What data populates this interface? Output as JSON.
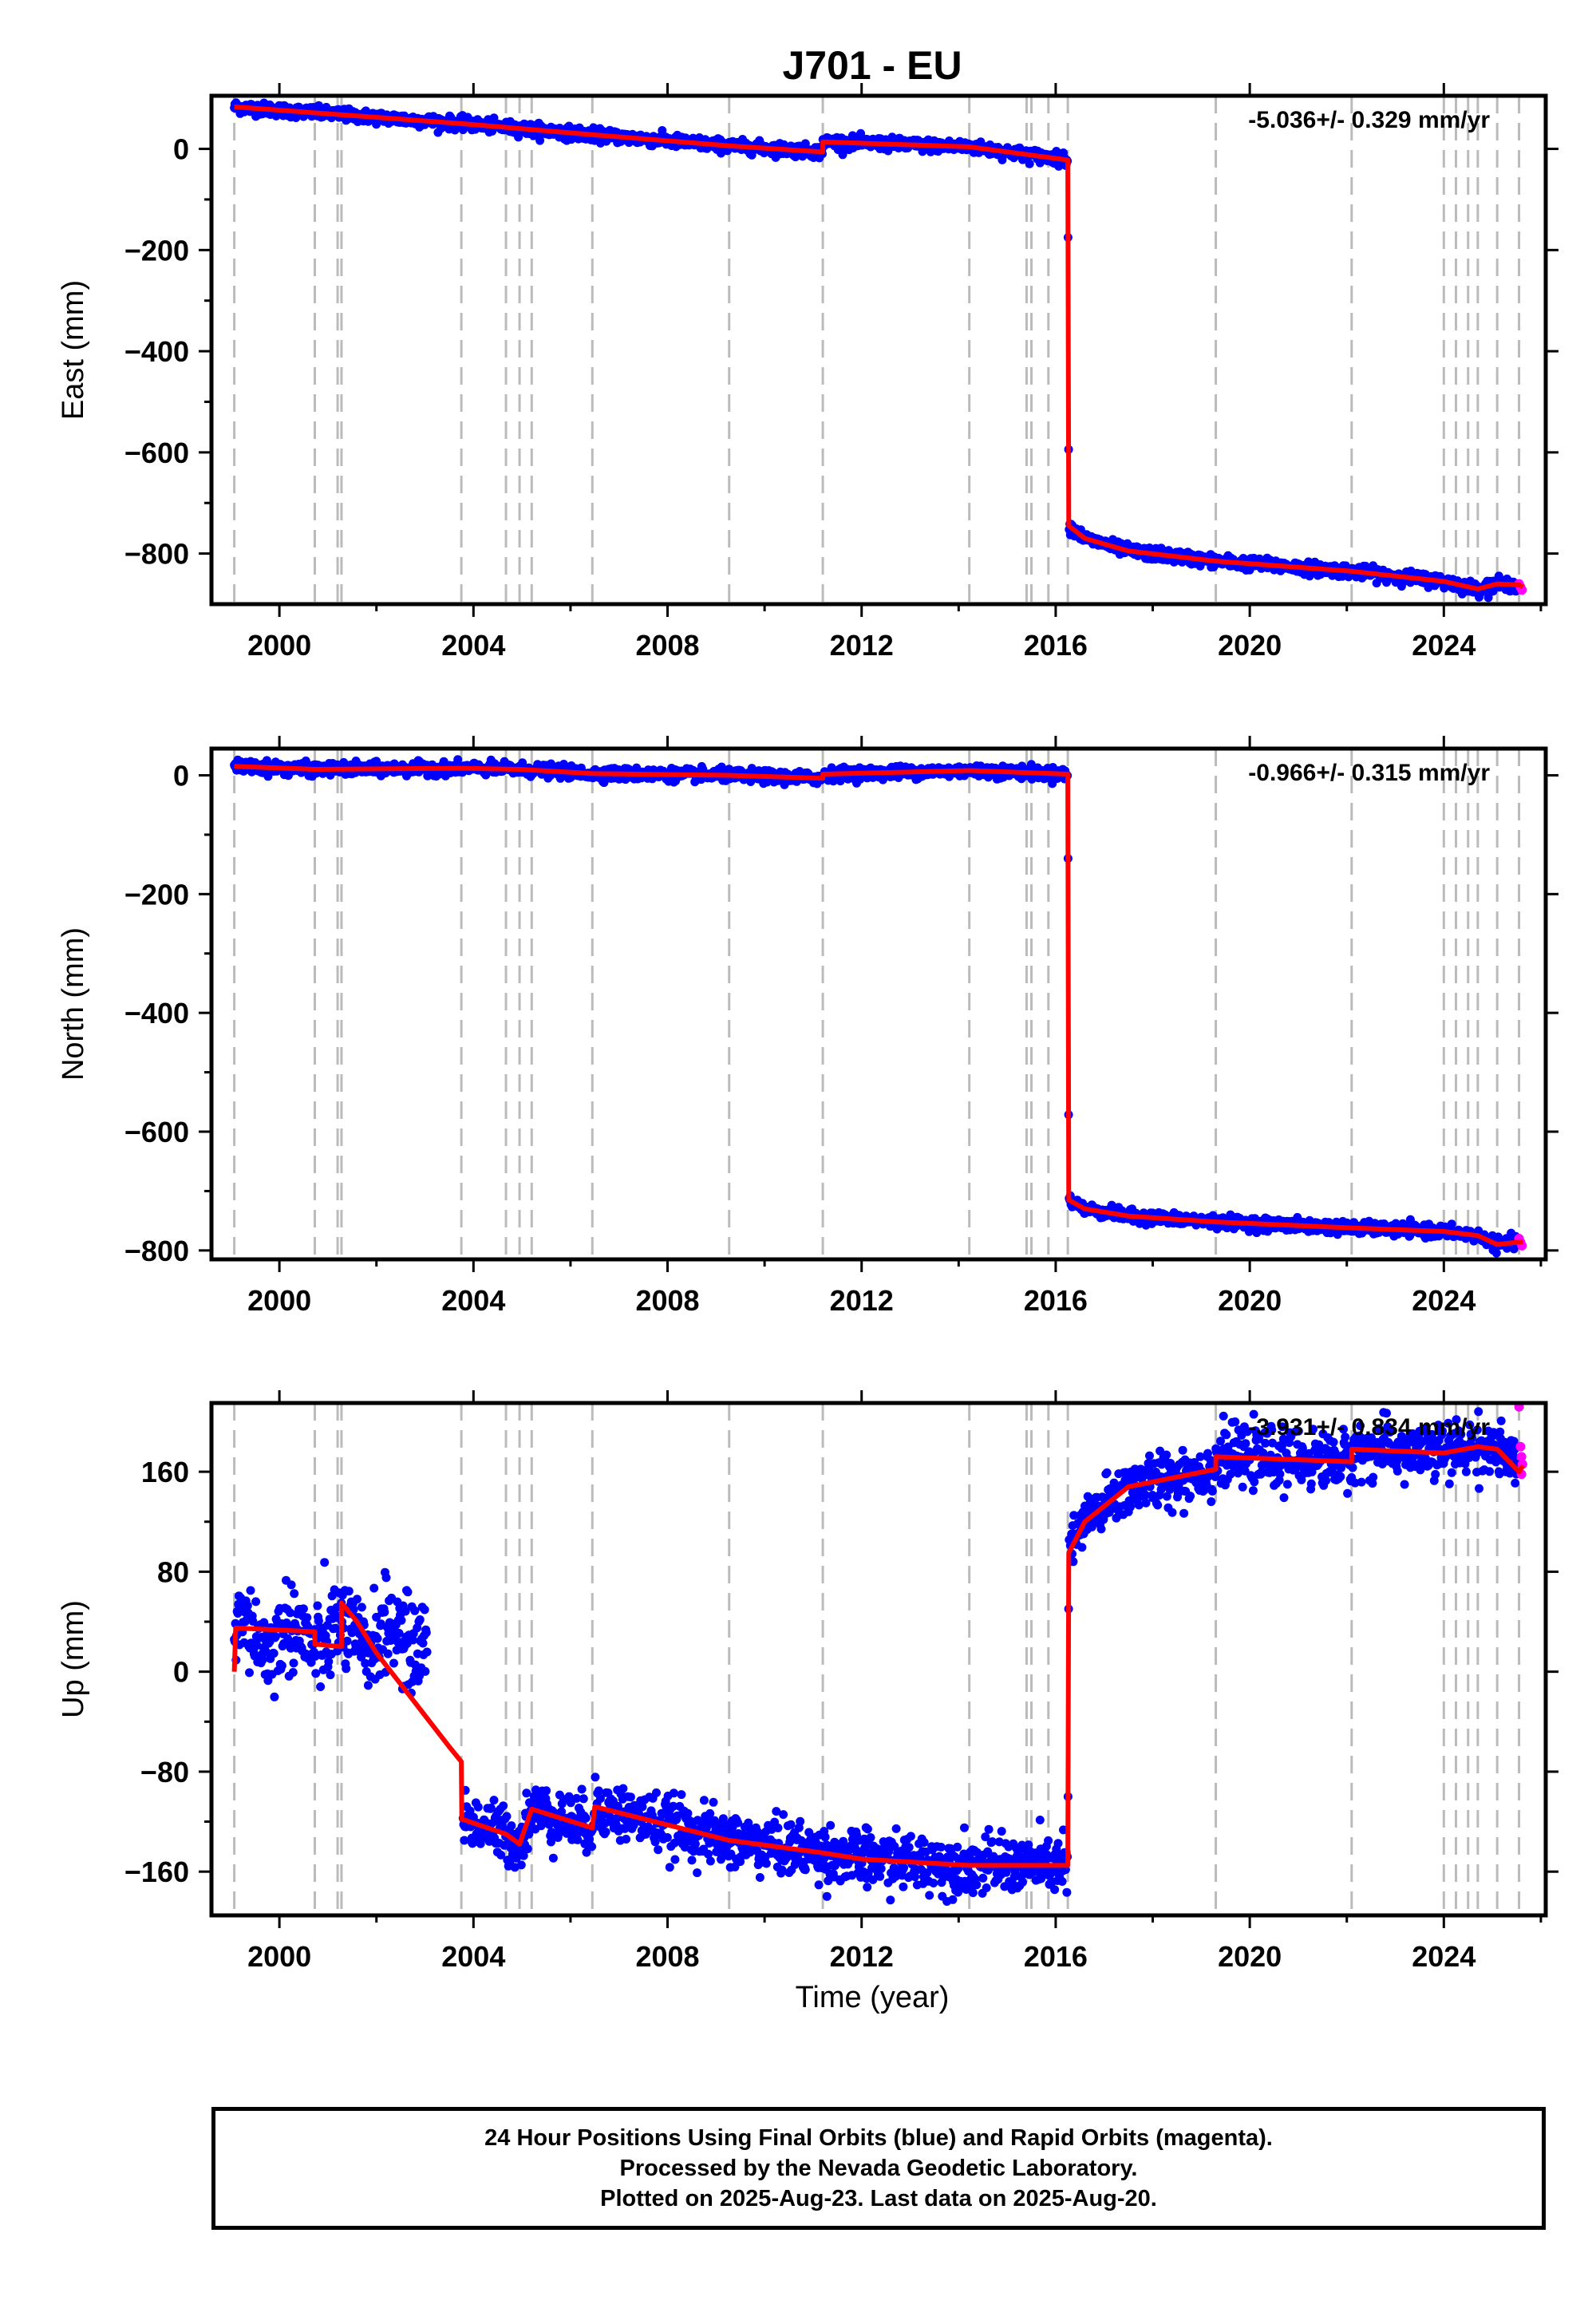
{
  "chart_data": {
    "type": "scatter",
    "title": "J701 - EU",
    "colors": {
      "final": "#0000ff",
      "rapid": "#ff00ff",
      "model": "#ff0000",
      "event": "#bbbbbb"
    },
    "event_years": [
      1999.07,
      2000.73,
      2001.2,
      2001.28,
      2003.75,
      2004.67,
      2004.95,
      2005.2,
      2006.45,
      2009.27,
      2011.2,
      2014.22,
      2015.4,
      2015.5,
      2015.85,
      2016.25,
      2019.3,
      2022.1,
      2024.0,
      2024.25,
      2024.5,
      2024.7,
      2025.1,
      2025.55
    ],
    "panels": [
      {
        "name": "East",
        "ylabel": "East (mm)",
        "rate": "-5.036+/- 0.329 mm/yr",
        "xlim": [
          1998.6,
          2026.1
        ],
        "ylim": [
          -900,
          105
        ],
        "yticks": [
          0,
          -200,
          -400,
          -600,
          -800
        ],
        "ytick_labels": [
          "0",
          "−200",
          "−400",
          "−600",
          "−800"
        ],
        "xticks": [
          2000,
          2004,
          2008,
          2012,
          2016,
          2020,
          2024
        ],
        "xtick_labels": [
          "2000",
          "2004",
          "2008",
          "2012",
          "2016",
          "2020",
          "2024"
        ],
        "noise": 6,
        "model": [
          [
            1999.07,
            83
          ],
          [
            2003.75,
            50
          ],
          [
            2006.45,
            28
          ],
          [
            2009.27,
            6
          ],
          [
            2011.2,
            -6
          ],
          [
            2011.2,
            14
          ],
          [
            2014.22,
            4
          ],
          [
            2016.25,
            -22
          ],
          [
            2016.27,
            -745
          ],
          [
            2016.6,
            -770
          ],
          [
            2017.5,
            -795
          ],
          [
            2019.3,
            -815
          ],
          [
            2022.1,
            -835
          ],
          [
            2024.0,
            -855
          ],
          [
            2024.7,
            -870
          ],
          [
            2025.1,
            -860
          ],
          [
            2025.55,
            -862
          ],
          [
            2025.63,
            -866
          ]
        ],
        "rapid_points": [
          [
            2025.55,
            -860
          ],
          [
            2025.58,
            -866
          ],
          [
            2025.61,
            -872
          ]
        ]
      },
      {
        "name": "North",
        "ylabel": "North (mm)",
        "rate": "-0.966+/- 0.315 mm/yr",
        "xlim": [
          1998.6,
          2026.1
        ],
        "ylim": [
          -815,
          45
        ],
        "yticks": [
          0,
          -200,
          -400,
          -600,
          -800
        ],
        "ytick_labels": [
          "0",
          "−200",
          "−400",
          "−600",
          "−800"
        ],
        "xticks": [
          2000,
          2004,
          2008,
          2012,
          2016,
          2020,
          2024
        ],
        "xtick_labels": [
          "2000",
          "2004",
          "2008",
          "2012",
          "2016",
          "2020",
          "2024"
        ],
        "noise": 5,
        "model": [
          [
            1999.07,
            15
          ],
          [
            2000.73,
            10
          ],
          [
            2003.75,
            12
          ],
          [
            2004.95,
            10
          ],
          [
            2006.45,
            3
          ],
          [
            2009.27,
            0
          ],
          [
            2011.2,
            -5
          ],
          [
            2011.2,
            2
          ],
          [
            2014.22,
            8
          ],
          [
            2016.25,
            2
          ],
          [
            2016.27,
            -715
          ],
          [
            2016.6,
            -730
          ],
          [
            2017.5,
            -742
          ],
          [
            2019.3,
            -752
          ],
          [
            2022.1,
            -762
          ],
          [
            2024.0,
            -768
          ],
          [
            2024.7,
            -775
          ],
          [
            2025.1,
            -790
          ],
          [
            2025.63,
            -785
          ]
        ],
        "rapid_points": [
          [
            2025.55,
            -780
          ],
          [
            2025.58,
            -786
          ],
          [
            2025.61,
            -792
          ]
        ]
      },
      {
        "name": "Up",
        "ylabel": "Up (mm)",
        "rate": "-3.931+/- 0.834 mm/yr",
        "xlim": [
          1998.6,
          2026.1
        ],
        "ylim": [
          -195,
          215
        ],
        "yticks": [
          160,
          80,
          0,
          -80,
          -160
        ],
        "ytick_labels": [
          "160",
          "80",
          "0",
          "−80",
          "−160"
        ],
        "xticks": [
          2000,
          2004,
          2008,
          2012,
          2016,
          2020,
          2024
        ],
        "xtick_labels": [
          "2000",
          "2004",
          "2008",
          "2012",
          "2016",
          "2020",
          "2024"
        ],
        "noise": 11,
        "model": [
          [
            1999.07,
            0
          ],
          [
            1999.1,
            35
          ],
          [
            2000.73,
            32
          ],
          [
            2000.73,
            22
          ],
          [
            2001.28,
            20
          ],
          [
            2001.28,
            55
          ],
          [
            2001.6,
            40
          ],
          [
            2002.0,
            15
          ],
          [
            2002.5,
            -10
          ],
          [
            2003.0,
            -35
          ],
          [
            2003.5,
            -60
          ],
          [
            2003.75,
            -72
          ],
          [
            2003.76,
            -118
          ],
          [
            2004.67,
            -130
          ],
          [
            2004.95,
            -138
          ],
          [
            2005.2,
            -110
          ],
          [
            2006.45,
            -125
          ],
          [
            2006.5,
            -108
          ],
          [
            2009.27,
            -135
          ],
          [
            2011.2,
            -145
          ],
          [
            2012.0,
            -150
          ],
          [
            2014.22,
            -155
          ],
          [
            2016.25,
            -155
          ],
          [
            2016.27,
            95
          ],
          [
            2016.6,
            120
          ],
          [
            2017.5,
            148
          ],
          [
            2019.3,
            162
          ],
          [
            2019.3,
            172
          ],
          [
            2022.1,
            168
          ],
          [
            2022.1,
            178
          ],
          [
            2024.0,
            175
          ],
          [
            2024.7,
            180
          ],
          [
            2025.1,
            178
          ],
          [
            2025.55,
            160
          ],
          [
            2025.63,
            165
          ]
        ],
        "rapid_points": [
          [
            2025.55,
            212
          ],
          [
            2025.58,
            180
          ],
          [
            2025.6,
            172
          ],
          [
            2025.62,
            166
          ],
          [
            2025.6,
            158
          ]
        ]
      }
    ],
    "xlabel": "Time (year)"
  },
  "footer": {
    "line1": "24 Hour Positions Using Final Orbits (blue) and Rapid Orbits (magenta).",
    "line2": "Processed by the Nevada Geodetic Laboratory.",
    "line3": "Plotted on 2025-Aug-23. Last data on 2025-Aug-20."
  }
}
